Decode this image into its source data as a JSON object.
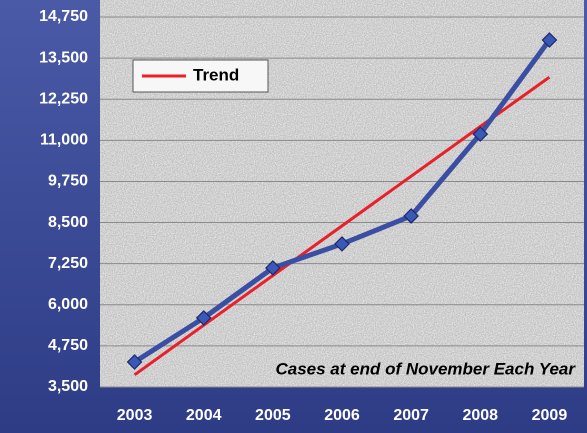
{
  "chart_data": {
    "type": "line",
    "categories": [
      "2003",
      "2004",
      "2005",
      "2006",
      "2007",
      "2008",
      "2009"
    ],
    "series": [
      {
        "color": "#3a4ea3",
        "values": [
          4260,
          5600,
          7120,
          7850,
          8700,
          11190,
          14050
        ]
      },
      {
        "name": "Trend",
        "color": "#e8202a",
        "values": [
          3870,
          5380,
          6890,
          8400,
          9910,
          11420,
          12920
        ]
      }
    ],
    "ylim": [
      3500,
      14750
    ],
    "yticks": [
      {
        "value": 3500,
        "label": "3,500"
      },
      {
        "value": 4750,
        "label": "4,750"
      },
      {
        "value": 6000,
        "label": "6,000"
      },
      {
        "value": 7250,
        "label": "7,250"
      },
      {
        "value": 8500,
        "label": "8,500"
      },
      {
        "value": 9750,
        "label": "9,750"
      },
      {
        "value": 11000,
        "label": "11,000"
      },
      {
        "value": 12250,
        "label": "12,250"
      },
      {
        "value": 13500,
        "label": "13,500"
      },
      {
        "value": 14750,
        "label": "14,750"
      }
    ],
    "annotation": "Cases at end of November Each Year",
    "grid": true,
    "legend": "upper left"
  }
}
